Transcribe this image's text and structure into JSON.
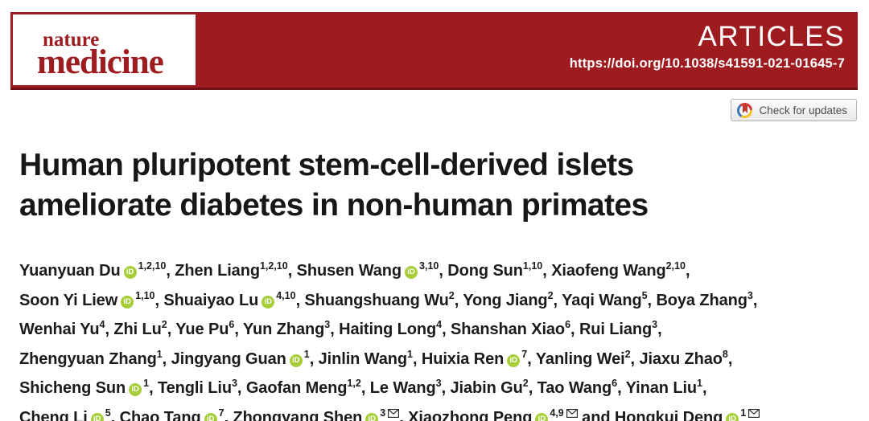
{
  "banner": {
    "journal_name_top": "nature",
    "journal_name_bottom": "medicine",
    "section_label": "ARTICLES",
    "doi_url": "https://doi.org/10.1038/s41591-021-01645-7",
    "colors": {
      "banner_red": "#9e1c20",
      "banner_red_dark": "#6e1114"
    }
  },
  "check_for_updates": {
    "label": "Check for updates",
    "icon": "crossmark-icon"
  },
  "article": {
    "title_line1": "Human pluripotent stem-cell-derived islets",
    "title_line2": "ameliorate diabetes in non-human primates"
  },
  "authors": {
    "orcid_icon_text": "iD",
    "orcid_color": "#a6ce39",
    "lines": [
      [
        {
          "name": "Yuanyuan Du",
          "orcid": true,
          "sup": "1,2,10",
          "sep": ", "
        },
        {
          "name": "Zhen Liang",
          "sup": "1,2,10",
          "sep": ", "
        },
        {
          "name": "Shusen Wang",
          "orcid": true,
          "sup": "3,10",
          "sep": ", "
        },
        {
          "name": "Dong Sun",
          "sup": "1,10",
          "sep": ", "
        },
        {
          "name": "Xiaofeng Wang",
          "sup": "2,10",
          "sep": ","
        }
      ],
      [
        {
          "name": "Soon Yi Liew",
          "orcid": true,
          "sup": "1,10",
          "sep": ", "
        },
        {
          "name": "Shuaiyao Lu",
          "orcid": true,
          "sup": "4,10",
          "sep": ", "
        },
        {
          "name": "Shuangshuang Wu",
          "sup": "2",
          "sep": ", "
        },
        {
          "name": "Yong Jiang",
          "sup": "2",
          "sep": ", "
        },
        {
          "name": "Yaqi Wang",
          "sup": "5",
          "sep": ", "
        },
        {
          "name": "Boya Zhang",
          "sup": "3",
          "sep": ","
        }
      ],
      [
        {
          "name": "Wenhai Yu",
          "sup": "4",
          "sep": ", "
        },
        {
          "name": "Zhi Lu",
          "sup": "2",
          "sep": ", "
        },
        {
          "name": "Yue Pu",
          "sup": "6",
          "sep": ", "
        },
        {
          "name": "Yun Zhang",
          "sup": "3",
          "sep": ", "
        },
        {
          "name": "Haiting Long",
          "sup": "4",
          "sep": ", "
        },
        {
          "name": "Shanshan Xiao",
          "sup": "6",
          "sep": ", "
        },
        {
          "name": "Rui Liang",
          "sup": "3",
          "sep": ","
        }
      ],
      [
        {
          "name": "Zhengyuan Zhang",
          "sup": "1",
          "sep": ", "
        },
        {
          "name": "Jingyang Guan",
          "orcid": true,
          "sup": "1",
          "sep": ", "
        },
        {
          "name": "Jinlin Wang",
          "sup": "1",
          "sep": ", "
        },
        {
          "name": "Huixia Ren",
          "orcid": true,
          "sup": "7",
          "sep": ", "
        },
        {
          "name": "Yanling Wei",
          "sup": "2",
          "sep": ", "
        },
        {
          "name": "Jiaxu Zhao",
          "sup": "8",
          "sep": ","
        }
      ],
      [
        {
          "name": "Shicheng Sun",
          "orcid": true,
          "sup": "1",
          "sep": ", "
        },
        {
          "name": "Tengli Liu",
          "sup": "3",
          "sep": ", "
        },
        {
          "name": "Gaofan Meng",
          "sup": "1,2",
          "sep": ", "
        },
        {
          "name": "Le Wang",
          "sup": "3",
          "sep": ", "
        },
        {
          "name": "Jiabin Gu",
          "sup": "2",
          "sep": ", "
        },
        {
          "name": "Tao Wang",
          "sup": "6",
          "sep": ", "
        },
        {
          "name": "Yinan Liu",
          "sup": "1",
          "sep": ","
        }
      ],
      [
        {
          "name": "Cheng Li",
          "orcid": true,
          "sup": "5",
          "sep": ", "
        },
        {
          "name": "Chao Tang",
          "orcid": true,
          "sup": "7",
          "sep": ", "
        },
        {
          "name": "Zhongyang Shen",
          "orcid": true,
          "sup": "3",
          "email": true,
          "sep": ", "
        },
        {
          "name": "Xiaozhong Peng",
          "orcid": true,
          "sup": "4,9",
          "email": true,
          "sep": " and "
        },
        {
          "name": "Hongkui Deng",
          "orcid": true,
          "sup": "1",
          "email": true,
          "sep": ""
        }
      ]
    ]
  }
}
